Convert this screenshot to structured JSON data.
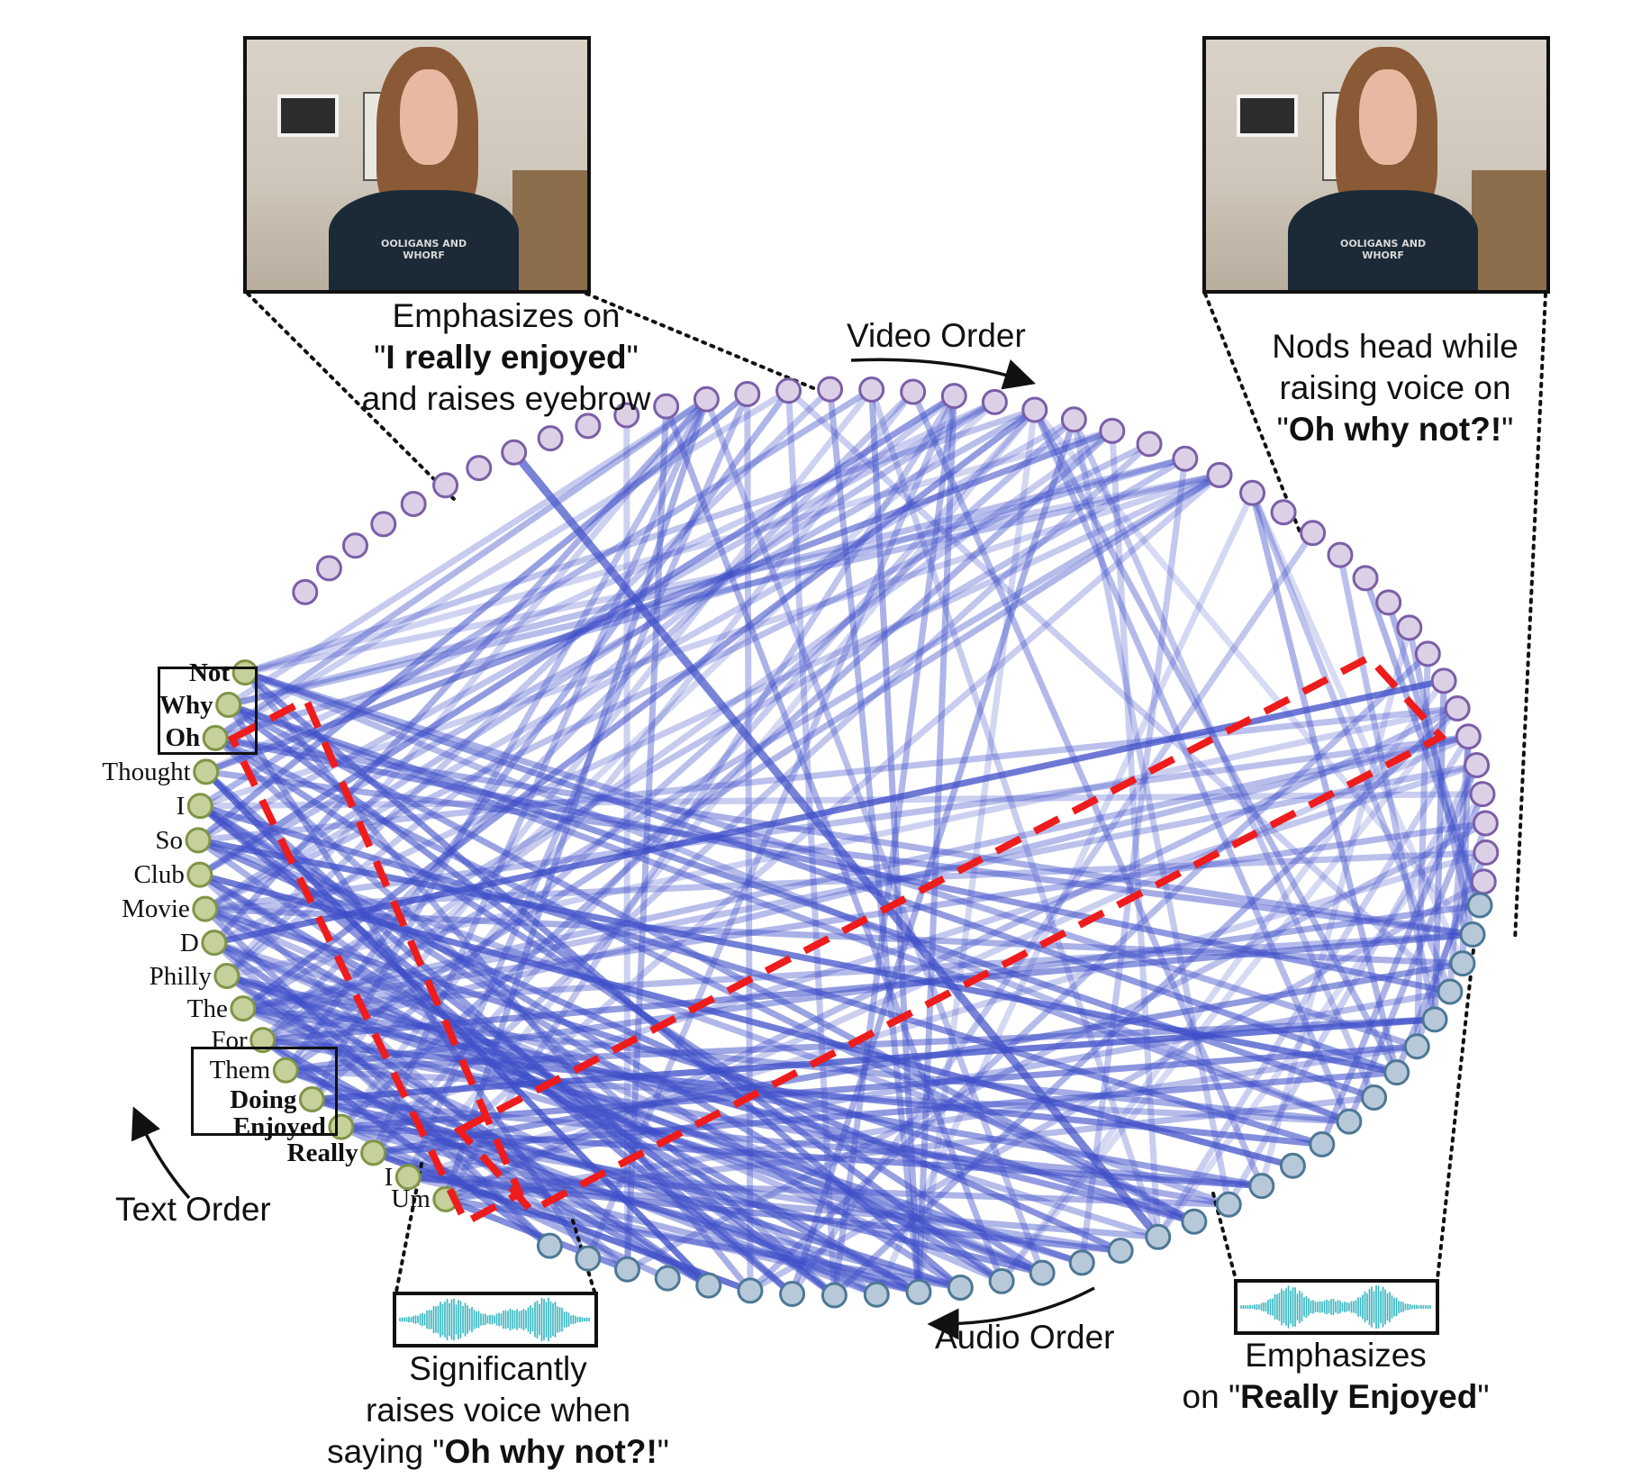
{
  "captions": {
    "top_left": {
      "line1": "Emphasizes on",
      "line2_pre": "\"",
      "line2_bold": "I really enjoyed",
      "line2_post": "\"",
      "line3": "and raises eyebrow"
    },
    "top_right": {
      "line1": "Nods head while",
      "line2": "raising voice on",
      "line3_pre": "\"",
      "line3_bold": "Oh why not?!",
      "line3_post": "\""
    },
    "bottom_left": {
      "line1": "Significantly",
      "line2": "raises voice when",
      "line3_pre": "saying \"",
      "line3_bold": "Oh why not?!",
      "line3_post": "\""
    },
    "bottom_right": {
      "line1": "Emphasizes",
      "line2_pre": "on \"",
      "line2_bold": "Really Enjoyed",
      "line2_post": "\""
    }
  },
  "orders": {
    "video": "Video Order",
    "audio": "Audio Order",
    "text": "Text Order"
  },
  "video_frames": {
    "shirt_text": "OOLIGANS AND WHORF"
  },
  "text_words": [
    "Not",
    "Why",
    "Oh",
    "Thought",
    "I",
    "So",
    "Club",
    "Movie",
    "D",
    "Philly",
    "The",
    "For",
    "Them",
    "Doing",
    "Enjoyed",
    "Really",
    "I",
    "Um"
  ],
  "bold_words": [
    "Not",
    "Why",
    "Oh",
    "Doing",
    "Enjoyed",
    "Really"
  ],
  "colors": {
    "video_node_fill": "#dcd0e6",
    "video_node_stroke": "#7b5ea7",
    "audio_node_fill": "#b7c9d8",
    "audio_node_stroke": "#4d7796",
    "text_node_fill": "#c5d09a",
    "text_node_stroke": "#7f9447",
    "edge": "#3f4fc8",
    "highlight": "#ee1c1c",
    "wave": "#35b6c0"
  }
}
